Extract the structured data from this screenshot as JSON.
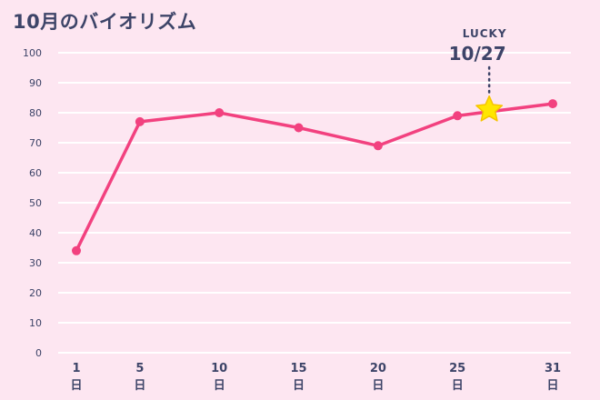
{
  "title": "10月のバイオリズム",
  "colors": {
    "background": "#fde6f1",
    "line": "#f2417f",
    "grid": "#ffffff",
    "text": "#3d4468",
    "star": "#ffe600",
    "star_stroke": "#f6c400"
  },
  "lucky": {
    "label": "LUCKY",
    "date": "10/27",
    "icon": "star-icon"
  },
  "chart_data": {
    "type": "line",
    "title": "10月のバイオリズム",
    "xlabel": "",
    "ylabel": "",
    "ylim": [
      0,
      100
    ],
    "xlim": [
      1,
      31
    ],
    "y_ticks": [
      0,
      10,
      20,
      30,
      40,
      50,
      60,
      70,
      80,
      90,
      100
    ],
    "x_ticks": [
      1,
      5,
      10,
      15,
      20,
      25,
      31
    ],
    "x_tick_suffix": "日",
    "grid": true,
    "series": [
      {
        "x": [
          1,
          5,
          10,
          15,
          20,
          25,
          31
        ],
        "values": [
          34,
          77,
          80,
          75,
          69,
          79,
          83
        ]
      }
    ],
    "highlight": {
      "x": 27,
      "y": 81,
      "marker": "star"
    }
  }
}
